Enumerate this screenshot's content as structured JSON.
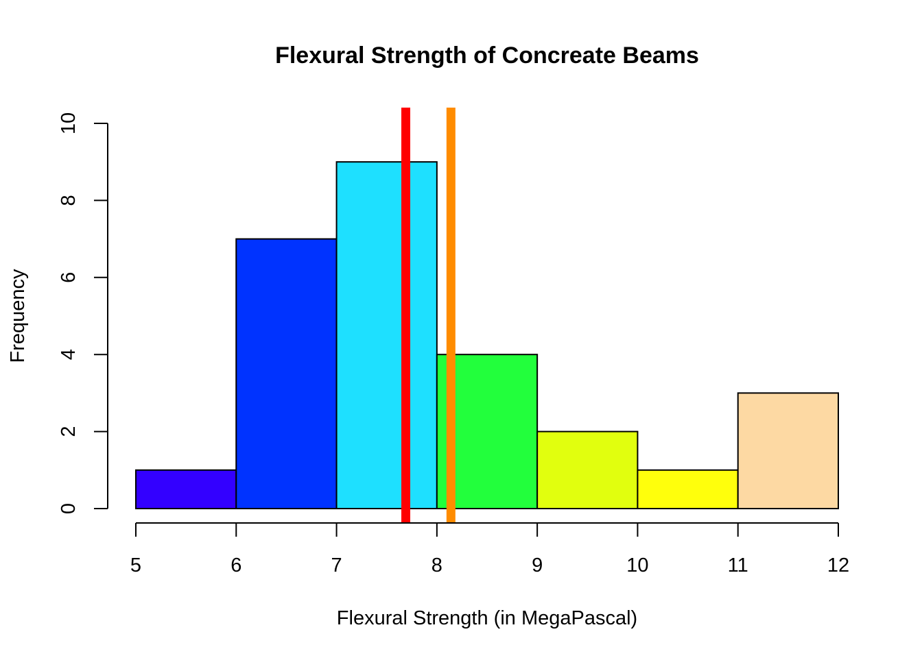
{
  "chart_data": {
    "type": "bar",
    "title": "Flexural Strength of Concreate Beams",
    "xlabel": "Flexural Strength (in MegaPascal)",
    "ylabel": "Frequency",
    "xlim": [
      5,
      12
    ],
    "ylim": [
      0,
      10
    ],
    "x_ticks": [
      "5",
      "6",
      "7",
      "8",
      "9",
      "10",
      "11",
      "12"
    ],
    "y_ticks": [
      "0",
      "2",
      "4",
      "6",
      "8",
      "10"
    ],
    "bins": [
      {
        "from": 5,
        "to": 6,
        "count": 1,
        "color": "#3300FF"
      },
      {
        "from": 6,
        "to": 7,
        "count": 7,
        "color": "#0033FF"
      },
      {
        "from": 7,
        "to": 8,
        "count": 9,
        "color": "#1EE0FF"
      },
      {
        "from": 8,
        "to": 9,
        "count": 4,
        "color": "#22FF3C"
      },
      {
        "from": 9,
        "to": 10,
        "count": 2,
        "color": "#E1FF0E"
      },
      {
        "from": 10,
        "to": 11,
        "count": 1,
        "color": "#FFFF0C"
      },
      {
        "from": 11,
        "to": 12,
        "count": 3,
        "color": "#FDD9A3"
      }
    ],
    "reference_lines": [
      {
        "x": 7.69,
        "color": "#FF0000"
      },
      {
        "x": 8.14,
        "color": "#FF8C00"
      }
    ],
    "grid": false,
    "legend": "none"
  }
}
